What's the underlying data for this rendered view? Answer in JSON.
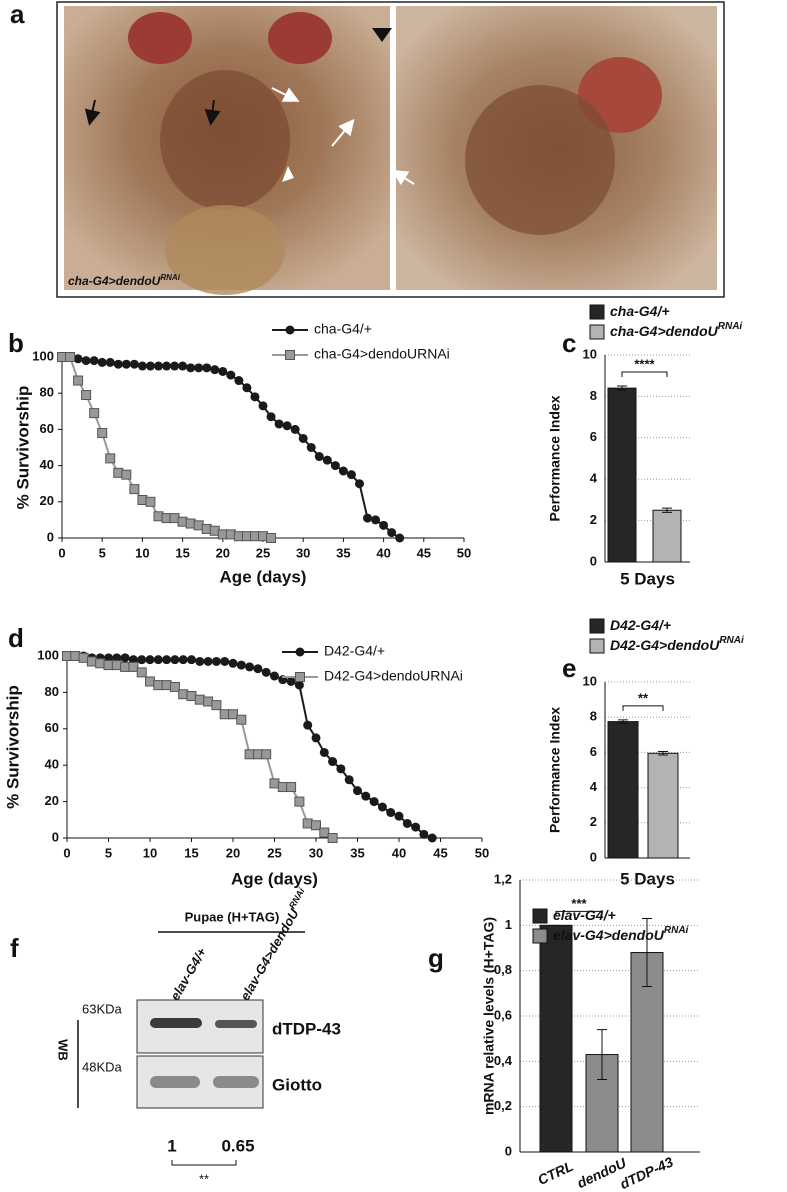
{
  "panel_a": {
    "label": "a",
    "caption": {
      "text": "cha-G4>dendoU",
      "sup": "RNAi"
    }
  },
  "chart_data": [
    {
      "type": "line",
      "panel_label": "b",
      "xlabel": "Age (days)",
      "ylabel": "% Survivorship",
      "xlim": [
        0,
        50
      ],
      "ylim": [
        0,
        100
      ],
      "xticks": [
        0,
        5,
        10,
        15,
        20,
        25,
        30,
        35,
        40,
        45,
        50
      ],
      "yticks": [
        0,
        20,
        40,
        60,
        80,
        100
      ],
      "series": [
        {
          "name": "cha-G4/+",
          "color": "#1a1a1a",
          "marker": "circle",
          "x": [
            1,
            2,
            3,
            4,
            5,
            6,
            7,
            8,
            9,
            10,
            11,
            12,
            13,
            14,
            15,
            16,
            17,
            18,
            19,
            20,
            21,
            22,
            23,
            24,
            25,
            26,
            27,
            28,
            29,
            30,
            31,
            32,
            33,
            34,
            35,
            36,
            37,
            38,
            39,
            40,
            41,
            42
          ],
          "values": [
            100,
            99,
            98,
            98,
            97,
            97,
            96,
            96,
            96,
            95,
            95,
            95,
            95,
            95,
            95,
            94,
            94,
            94,
            93,
            92,
            90,
            87,
            83,
            78,
            73,
            67,
            63,
            62,
            60,
            55,
            50,
            45,
            43,
            40,
            37,
            35,
            30,
            11,
            10,
            7,
            3,
            0
          ]
        },
        {
          "name": "cha-G4>dendoURNAi",
          "color": "#999999",
          "marker": "square",
          "x": [
            0,
            1,
            2,
            3,
            4,
            5,
            6,
            7,
            8,
            9,
            10,
            11,
            12,
            13,
            14,
            15,
            16,
            17,
            18,
            19,
            20,
            21,
            22,
            23,
            24,
            25,
            26
          ],
          "values": [
            100,
            100,
            87,
            79,
            69,
            58,
            44,
            36,
            35,
            27,
            21,
            20,
            12,
            11,
            11,
            9,
            8,
            7,
            5,
            4,
            2,
            2,
            1,
            1,
            1,
            1,
            0
          ]
        }
      ]
    },
    {
      "type": "bar",
      "panel_label": "c",
      "xlabel": "5 Days",
      "ylabel": "Performance Index",
      "ylim": [
        0,
        10
      ],
      "yticks": [
        0,
        2,
        4,
        6,
        8,
        10
      ],
      "grid": true,
      "values": [
        8.4,
        2.5
      ],
      "errors": [
        0.1,
        0.1
      ],
      "colors": [
        "#262626",
        "#b3b3b3"
      ],
      "legend": [
        {
          "name": "cha-G4/+"
        },
        {
          "name": "cha-G4>dendoU",
          "sup": "RNAi"
        }
      ],
      "significance": "****"
    },
    {
      "type": "line",
      "panel_label": "d",
      "xlabel": "Age (days)",
      "ylabel": "% Survivorship",
      "xlim": [
        0,
        50
      ],
      "ylim": [
        0,
        100
      ],
      "xticks": [
        0,
        5,
        10,
        15,
        20,
        25,
        30,
        35,
        40,
        45,
        50
      ],
      "yticks": [
        0,
        20,
        40,
        60,
        80,
        100
      ],
      "series": [
        {
          "name": "D42-G4/+",
          "color": "#1a1a1a",
          "marker": "circle",
          "x": [
            0,
            1,
            2,
            3,
            4,
            5,
            6,
            7,
            8,
            9,
            10,
            11,
            12,
            13,
            14,
            15,
            16,
            17,
            18,
            19,
            20,
            21,
            22,
            23,
            24,
            25,
            26,
            27,
            28,
            29,
            30,
            31,
            32,
            33,
            34,
            35,
            36,
            37,
            38,
            39,
            40,
            41,
            42,
            43,
            44
          ],
          "values": [
            100,
            100,
            100,
            99,
            99,
            99,
            99,
            99,
            98,
            98,
            98,
            98,
            98,
            98,
            98,
            98,
            97,
            97,
            97,
            97,
            96,
            95,
            94,
            93,
            91,
            89,
            87,
            86,
            84,
            62,
            55,
            47,
            42,
            38,
            32,
            26,
            23,
            20,
            17,
            14,
            12,
            8,
            6,
            2,
            0
          ]
        },
        {
          "name": "D42-G4>dendoURNAi",
          "color": "#999999",
          "marker": "square",
          "x": [
            0,
            1,
            2,
            3,
            4,
            5,
            6,
            7,
            8,
            9,
            10,
            11,
            12,
            13,
            14,
            15,
            16,
            17,
            18,
            19,
            20,
            21,
            22,
            23,
            24,
            25,
            26,
            27,
            28,
            29,
            30,
            31,
            32
          ],
          "values": [
            100,
            100,
            99,
            97,
            96,
            95,
            95,
            94,
            94,
            91,
            86,
            84,
            84,
            83,
            79,
            78,
            76,
            75,
            73,
            68,
            68,
            65,
            46,
            46,
            46,
            30,
            28,
            28,
            20,
            8,
            7,
            3,
            0
          ]
        }
      ]
    },
    {
      "type": "bar",
      "panel_label": "e",
      "xlabel": "5 Days",
      "ylabel": "Performance Index",
      "ylim": [
        0,
        10
      ],
      "yticks": [
        0,
        2,
        4,
        6,
        8,
        10
      ],
      "grid": true,
      "values": [
        7.75,
        5.95
      ],
      "errors": [
        0.1,
        0.1
      ],
      "colors": [
        "#262626",
        "#b3b3b3"
      ],
      "legend": [
        {
          "name": "D42-G4/+"
        },
        {
          "name": "D42-G4>dendoU",
          "sup": "RNAi"
        }
      ],
      "significance": "**"
    },
    {
      "type": "bar",
      "panel_label": "g",
      "ylabel": "mRNA relative levels (H+TAG)",
      "ylim": [
        0,
        1.2
      ],
      "yticks": [
        0,
        {
          "value": 0.2,
          "label": "0,2"
        },
        {
          "value": 0.4,
          "label": "0,4"
        },
        {
          "value": 0.6,
          "label": "0,6"
        },
        {
          "value": 0.8,
          "label": "0,8"
        },
        1,
        {
          "value": 1.2,
          "label": "1,2"
        }
      ],
      "grid": true,
      "categories": [
        "CTRL",
        "dendoU",
        "dTDP-43"
      ],
      "values": [
        1,
        0.43,
        0.88
      ],
      "errors": [
        0,
        0.11,
        0.15
      ],
      "colors": [
        "#262626",
        "#8c8c8c",
        "#8c8c8c"
      ],
      "legend": [
        {
          "name": "elav-G4/+"
        },
        {
          "name": "elav-G4>dendoU",
          "sup": "RNAi"
        }
      ],
      "significance": "***"
    }
  ],
  "panel_f": {
    "label": "f",
    "group": "Pupae (H+TAG)",
    "lanes": [
      {
        "text": "elav-G4/+"
      },
      {
        "text": "elav-G4>dendoU",
        "sup": "RNAi"
      }
    ],
    "method": "WB",
    "markers": [
      "63KDa",
      "48KDa"
    ],
    "bands": [
      "dTDP-43",
      "Giotto"
    ],
    "quantification": [
      1,
      0.65
    ],
    "significance": "**"
  }
}
